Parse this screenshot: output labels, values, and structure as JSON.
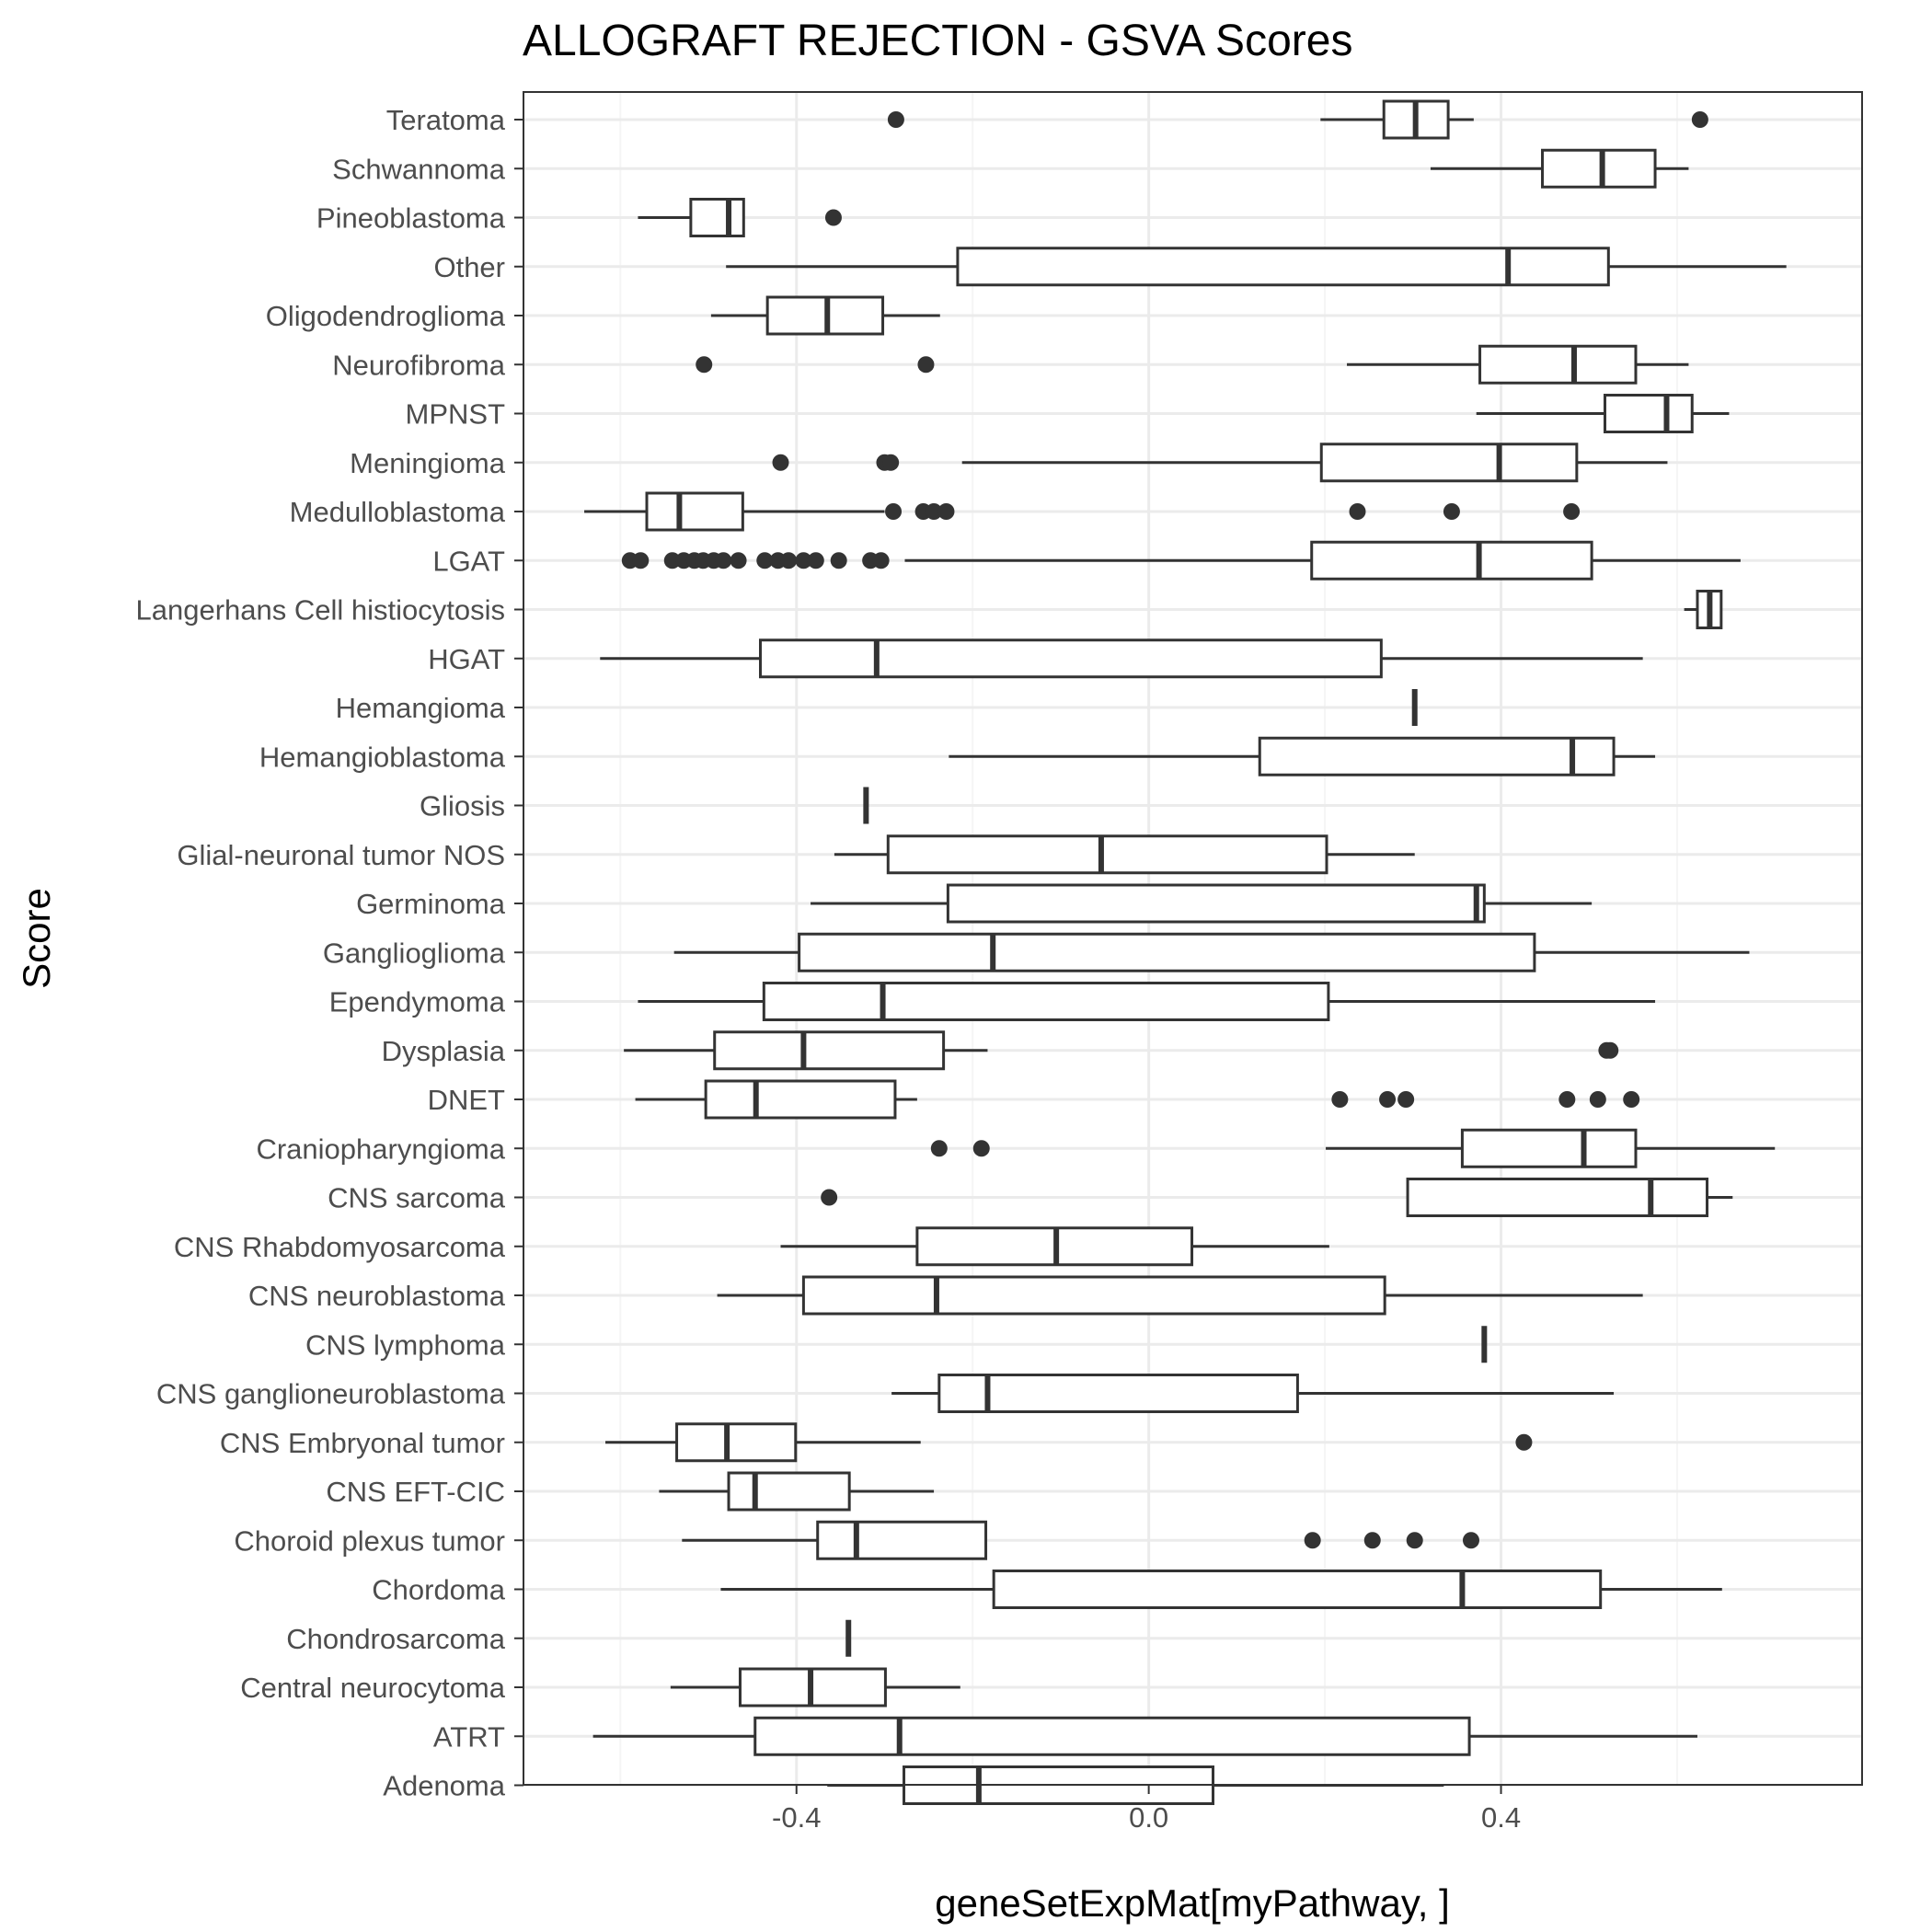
{
  "chart_data": {
    "type": "boxplot",
    "orientation": "horizontal",
    "title": "ALLOGRAFT REJECTION - GSVA Scores",
    "xlabel": "geneSetExpMat[myPathway, ]",
    "ylabel": "Score",
    "xlim": [
      -0.71,
      0.81
    ],
    "xticks": [
      -0.4,
      0.0,
      0.4
    ],
    "xtick_labels": [
      "-0.4",
      "0.0",
      "0.4"
    ],
    "grid": true,
    "theme": "bw",
    "colors": {
      "box": "#333333",
      "grid_major": "#ebebeb",
      "grid_minor": "#f5f5f5",
      "panel_border": "#333333",
      "outlier": "#333333"
    },
    "categories": [
      "Teratoma",
      "Schwannoma",
      "Pineoblastoma",
      "Other",
      "Oligodendroglioma",
      "Neurofibroma",
      "MPNST",
      "Meningioma",
      "Medulloblastoma",
      "LGAT",
      "Langerhans Cell histiocytosis",
      "HGAT",
      "Hemangioma",
      "Hemangioblastoma",
      "Gliosis",
      "Glial-neuronal tumor NOS",
      "Germinoma",
      "Ganglioglioma",
      "Ependymoma",
      "Dysplasia",
      "DNET",
      "Craniopharyngioma",
      "CNS sarcoma",
      "CNS Rhabdomyosarcoma",
      "CNS neuroblastoma",
      "CNS lymphoma",
      "CNS ganglioneuroblastoma",
      "CNS Embryonal tumor",
      "CNS EFT-CIC",
      "Choroid plexus tumor",
      "Chordoma",
      "Chondrosarcoma",
      "Central neurocytoma",
      "ATRT",
      "Adenoma"
    ],
    "boxes": [
      {
        "name": "Teratoma",
        "whisker_low": 0.195,
        "q1": 0.267,
        "median": 0.303,
        "q3": 0.34,
        "whisker_high": 0.369,
        "outliers": [
          -0.287,
          0.626
        ]
      },
      {
        "name": "Schwannoma",
        "whisker_low": 0.32,
        "q1": 0.447,
        "median": 0.515,
        "q3": 0.575,
        "whisker_high": 0.613,
        "outliers": []
      },
      {
        "name": "Pineoblastoma",
        "whisker_low": -0.58,
        "q1": -0.52,
        "median": -0.477,
        "q3": -0.46,
        "whisker_high": -0.46,
        "outliers": [
          -0.358
        ]
      },
      {
        "name": "Other",
        "whisker_low": -0.48,
        "q1": -0.217,
        "median": 0.408,
        "q3": 0.522,
        "whisker_high": 0.724,
        "outliers": []
      },
      {
        "name": "Oligodendroglioma",
        "whisker_low": -0.497,
        "q1": -0.433,
        "median": -0.365,
        "q3": -0.302,
        "whisker_high": -0.237,
        "outliers": []
      },
      {
        "name": "Neurofibroma",
        "whisker_low": 0.225,
        "q1": 0.376,
        "median": 0.483,
        "q3": 0.553,
        "whisker_high": 0.613,
        "outliers": [
          -0.505,
          -0.253
        ]
      },
      {
        "name": "MPNST",
        "whisker_low": 0.372,
        "q1": 0.518,
        "median": 0.588,
        "q3": 0.617,
        "whisker_high": 0.659,
        "outliers": []
      },
      {
        "name": "Meningioma",
        "whisker_low": -0.212,
        "q1": 0.196,
        "median": 0.398,
        "q3": 0.486,
        "whisker_high": 0.589,
        "outliers": [
          -0.418,
          -0.3,
          -0.293
        ]
      },
      {
        "name": "Medulloblastoma",
        "whisker_low": -0.641,
        "q1": -0.57,
        "median": -0.533,
        "q3": -0.461,
        "whisker_high": -0.3,
        "outliers": [
          -0.29,
          -0.256,
          -0.244,
          -0.23,
          0.237,
          0.344,
          0.48
        ]
      },
      {
        "name": "LGAT",
        "whisker_low": -0.277,
        "q1": 0.185,
        "median": 0.375,
        "q3": 0.503,
        "whisker_high": 0.672,
        "outliers": [
          -0.589,
          -0.577,
          -0.541,
          -0.528,
          -0.516,
          -0.506,
          -0.494,
          -0.483,
          -0.466,
          -0.436,
          -0.421,
          -0.409,
          -0.392,
          -0.378,
          -0.352,
          -0.316,
          -0.304
        ]
      },
      {
        "name": "Langerhans Cell histiocytosis",
        "whisker_low": 0.608,
        "q1": 0.623,
        "median": 0.637,
        "q3": 0.65,
        "whisker_high": 0.65,
        "outliers": []
      },
      {
        "name": "HGAT",
        "whisker_low": -0.623,
        "q1": -0.441,
        "median": -0.309,
        "q3": 0.264,
        "whisker_high": 0.561,
        "outliers": []
      },
      {
        "name": "Hemangioma",
        "whisker_low": 0.302,
        "q1": 0.302,
        "median": 0.302,
        "q3": 0.302,
        "whisker_high": 0.302,
        "outliers": []
      },
      {
        "name": "Hemangioblastoma",
        "whisker_low": -0.227,
        "q1": 0.126,
        "median": 0.481,
        "q3": 0.528,
        "whisker_high": 0.575,
        "outliers": []
      },
      {
        "name": "Gliosis",
        "whisker_low": -0.321,
        "q1": -0.321,
        "median": -0.321,
        "q3": -0.321,
        "whisker_high": -0.321,
        "outliers": []
      },
      {
        "name": "Glial-neuronal tumor NOS",
        "whisker_low": -0.357,
        "q1": -0.296,
        "median": -0.054,
        "q3": 0.202,
        "whisker_high": 0.302,
        "outliers": []
      },
      {
        "name": "Germinoma",
        "whisker_low": -0.384,
        "q1": -0.228,
        "median": 0.372,
        "q3": 0.381,
        "whisker_high": 0.503,
        "outliers": []
      },
      {
        "name": "Ganglioglioma",
        "whisker_low": -0.539,
        "q1": -0.397,
        "median": -0.177,
        "q3": 0.438,
        "whisker_high": 0.682,
        "outliers": []
      },
      {
        "name": "Ependymoma",
        "whisker_low": -0.58,
        "q1": -0.437,
        "median": -0.302,
        "q3": 0.204,
        "whisker_high": 0.575,
        "outliers": []
      },
      {
        "name": "Dysplasia",
        "whisker_low": -0.596,
        "q1": -0.493,
        "median": -0.392,
        "q3": -0.233,
        "whisker_high": -0.183,
        "outliers": [
          0.52,
          0.524
        ]
      },
      {
        "name": "DNET",
        "whisker_low": -0.583,
        "q1": -0.503,
        "median": -0.446,
        "q3": -0.288,
        "whisker_high": -0.263,
        "outliers": [
          0.217,
          0.271,
          0.292,
          0.475,
          0.51,
          0.548
        ]
      },
      {
        "name": "Craniopharyngioma",
        "whisker_low": 0.201,
        "q1": 0.356,
        "median": 0.494,
        "q3": 0.553,
        "whisker_high": 0.711,
        "outliers": [
          -0.238,
          -0.19
        ]
      },
      {
        "name": "CNS sarcoma",
        "whisker_low": 0.294,
        "q1": 0.294,
        "median": 0.57,
        "q3": 0.634,
        "whisker_high": 0.663,
        "outliers": [
          -0.363
        ]
      },
      {
        "name": "CNS Rhabdomyosarcoma",
        "whisker_low": -0.418,
        "q1": -0.263,
        "median": -0.105,
        "q3": 0.049,
        "whisker_high": 0.205,
        "outliers": []
      },
      {
        "name": "CNS neuroblastoma",
        "whisker_low": -0.49,
        "q1": -0.392,
        "median": -0.241,
        "q3": 0.268,
        "whisker_high": 0.561,
        "outliers": []
      },
      {
        "name": "CNS lymphoma",
        "whisker_low": 0.381,
        "q1": 0.381,
        "median": 0.381,
        "q3": 0.381,
        "whisker_high": 0.381,
        "outliers": []
      },
      {
        "name": "CNS ganglioneuroblastoma",
        "whisker_low": -0.292,
        "q1": -0.238,
        "median": -0.183,
        "q3": 0.169,
        "whisker_high": 0.528,
        "outliers": []
      },
      {
        "name": "CNS Embryonal tumor",
        "whisker_low": -0.617,
        "q1": -0.536,
        "median": -0.479,
        "q3": -0.401,
        "whisker_high": -0.259,
        "outliers": [
          0.426
        ]
      },
      {
        "name": "CNS EFT-CIC",
        "whisker_low": -0.556,
        "q1": -0.477,
        "median": -0.447,
        "q3": -0.34,
        "whisker_high": -0.244,
        "outliers": []
      },
      {
        "name": "Choroid plexus tumor",
        "whisker_low": -0.53,
        "q1": -0.376,
        "median": -0.332,
        "q3": -0.185,
        "whisker_high": -0.185,
        "outliers": [
          0.186,
          0.254,
          0.302,
          0.366
        ]
      },
      {
        "name": "Chordoma",
        "whisker_low": -0.486,
        "q1": -0.176,
        "median": 0.356,
        "q3": 0.513,
        "whisker_high": 0.651,
        "outliers": []
      },
      {
        "name": "Chondrosarcoma",
        "whisker_low": -0.341,
        "q1": -0.341,
        "median": -0.341,
        "q3": -0.341,
        "whisker_high": -0.341,
        "outliers": []
      },
      {
        "name": "Central neurocytoma",
        "whisker_low": -0.543,
        "q1": -0.464,
        "median": -0.384,
        "q3": -0.299,
        "whisker_high": -0.214,
        "outliers": []
      },
      {
        "name": "ATRT",
        "whisker_low": -0.631,
        "q1": -0.447,
        "median": -0.283,
        "q3": 0.364,
        "whisker_high": 0.623,
        "outliers": []
      },
      {
        "name": "Adenoma",
        "whisker_low": -0.365,
        "q1": -0.278,
        "median": -0.193,
        "q3": 0.073,
        "whisker_high": 0.335,
        "outliers": []
      }
    ]
  }
}
